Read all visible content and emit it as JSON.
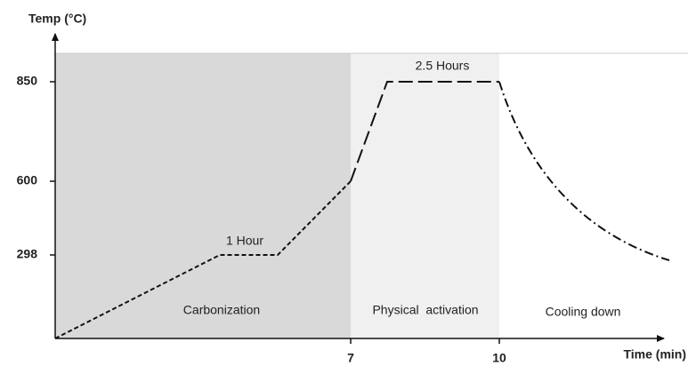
{
  "y_axis": {
    "label": "Temp (°C)",
    "ticks": [
      "850",
      "600",
      "298"
    ]
  },
  "x_axis": {
    "label": "Time (min)",
    "ticks": [
      "7",
      "10"
    ]
  },
  "annotations": [
    "1 Hour",
    "2.5 Hours"
  ],
  "regions": [
    "Carbonization",
    "Physical  activation",
    "Cooling down"
  ]
}
